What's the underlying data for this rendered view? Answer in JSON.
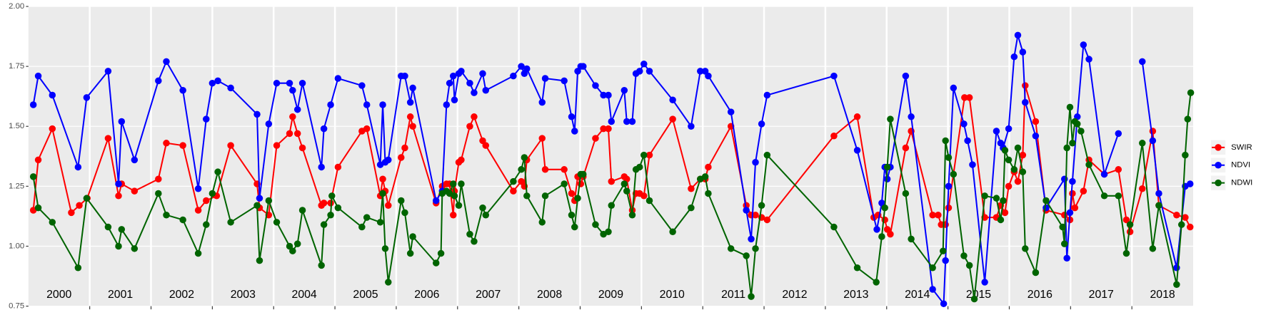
{
  "chart_data": {
    "type": "line",
    "xlim": [
      2000,
      2019
    ],
    "ylim": [
      0.75,
      2.0
    ],
    "xticks": [
      2001,
      2002,
      2003,
      2004,
      2005,
      2006,
      2007,
      2008,
      2009,
      2010,
      2011,
      2012,
      2013,
      2014,
      2015,
      2016,
      2017,
      2018
    ],
    "year_labels": [
      {
        "value": 2000.5,
        "label": "2000"
      },
      {
        "value": 2001.5,
        "label": "2001"
      },
      {
        "value": 2002.5,
        "label": "2002"
      },
      {
        "value": 2003.5,
        "label": "2003"
      },
      {
        "value": 2004.5,
        "label": "2004"
      },
      {
        "value": 2005.5,
        "label": "2005"
      },
      {
        "value": 2006.5,
        "label": "2006"
      },
      {
        "value": 2007.5,
        "label": "2007"
      },
      {
        "value": 2008.5,
        "label": "2008"
      },
      {
        "value": 2009.5,
        "label": "2009"
      },
      {
        "value": 2010.5,
        "label": "2010"
      },
      {
        "value": 2011.5,
        "label": "2011"
      },
      {
        "value": 2012.5,
        "label": "2012"
      },
      {
        "value": 2013.5,
        "label": "2013"
      },
      {
        "value": 2014.5,
        "label": "2014"
      },
      {
        "value": 2015.5,
        "label": "2015"
      },
      {
        "value": 2016.5,
        "label": "2016"
      },
      {
        "value": 2017.5,
        "label": "2017"
      },
      {
        "value": 2018.5,
        "label": "2018"
      }
    ],
    "yticks": [
      {
        "value": 0.75,
        "label": "0.75"
      },
      {
        "value": 1,
        "label": "1.00"
      },
      {
        "value": 1.25,
        "label": "1.25"
      },
      {
        "value": 1.5,
        "label": "1.50"
      },
      {
        "value": 1.75,
        "label": "1.75"
      },
      {
        "value": 2,
        "label": "2.00"
      }
    ],
    "grid": true,
    "legend": "right",
    "series": [
      {
        "name": "SWIR",
        "color": "#ff0000",
        "x": [
          2000.08,
          2000.16,
          2000.39,
          2000.7,
          2000.83,
          2000.96,
          2001.3,
          2001.47,
          2001.52,
          2001.73,
          2002.12,
          2002.25,
          2002.52,
          2002.77,
          2002.9,
          2003.07,
          2003.3,
          2003.73,
          2003.77,
          2003.92,
          2004.05,
          2004.26,
          2004.31,
          2004.39,
          2004.47,
          2004.78,
          2004.82,
          2004.93,
          2005.05,
          2005.44,
          2005.52,
          2005.74,
          2005.78,
          2005.82,
          2005.87,
          2006.08,
          2006.14,
          2006.23,
          2006.27,
          2006.65,
          2006.75,
          2006.82,
          2006.87,
          2006.93,
          2006.95,
          2007.02,
          2007.06,
          2007.2,
          2007.27,
          2007.41,
          2007.46,
          2007.91,
          2008.04,
          2008.09,
          2008.13,
          2008.38,
          2008.43,
          2008.74,
          2008.86,
          2008.91,
          2008.96,
          2009.01,
          2009.05,
          2009.25,
          2009.38,
          2009.46,
          2009.51,
          2009.72,
          2009.76,
          2009.85,
          2009.91,
          2009.97,
          2010.04,
          2010.13,
          2010.51,
          2010.81,
          2010.96,
          2011.04,
          2011.09,
          2011.46,
          2011.71,
          2011.79,
          2011.86,
          2011.96,
          2012.05,
          2013.14,
          2013.52,
          2013.79,
          2013.86,
          2013.97,
          2014.01,
          2014.06,
          2014.31,
          2014.4,
          2014.75,
          2014.84,
          2014.89,
          2014.96,
          2015.01,
          2015.27,
          2015.35,
          2015.6,
          2015.79,
          2015.86,
          2015.93,
          2015.99,
          2016.08,
          2016.14,
          2016.22,
          2016.26,
          2016.43,
          2016.6,
          2016.9,
          2016.99,
          2017.03,
          2017.07,
          2017.21,
          2017.3,
          2017.55,
          2017.78,
          2017.91,
          2017.97,
          2018.17,
          2018.34,
          2018.44,
          2018.73,
          2018.87,
          2018.95
        ],
        "values": [
          1.15,
          1.36,
          1.49,
          1.14,
          1.17,
          1.2,
          1.45,
          1.21,
          1.26,
          1.23,
          1.28,
          1.43,
          1.42,
          1.15,
          1.19,
          1.21,
          1.42,
          1.26,
          1.16,
          1.13,
          1.42,
          1.47,
          1.54,
          1.47,
          1.41,
          1.17,
          1.18,
          1.18,
          1.33,
          1.48,
          1.49,
          1.21,
          1.28,
          1.23,
          1.17,
          1.37,
          1.41,
          1.54,
          1.5,
          1.18,
          1.25,
          1.26,
          1.26,
          1.13,
          1.23,
          1.35,
          1.36,
          1.5,
          1.54,
          1.44,
          1.42,
          1.23,
          1.27,
          1.25,
          1.36,
          1.45,
          1.32,
          1.32,
          1.22,
          1.19,
          1.29,
          1.26,
          1.29,
          1.45,
          1.49,
          1.49,
          1.27,
          1.29,
          1.28,
          1.15,
          1.22,
          1.22,
          1.21,
          1.38,
          1.53,
          1.24,
          1.28,
          1.28,
          1.33,
          1.5,
          1.17,
          1.13,
          1.13,
          1.12,
          1.11,
          1.46,
          1.54,
          1.12,
          1.13,
          1.11,
          1.07,
          1.05,
          1.41,
          1.48,
          1.13,
          1.13,
          1.09,
          1.09,
          1.16,
          1.62,
          1.62,
          1.12,
          1.12,
          1.17,
          1.14,
          1.25,
          1.31,
          1.27,
          1.38,
          1.67,
          1.52,
          1.15,
          1.13,
          1.11,
          1.22,
          1.16,
          1.23,
          1.36,
          1.3,
          1.32,
          1.11,
          1.06,
          1.24,
          1.48,
          1.17,
          1.13,
          1.12,
          1.08
        ]
      },
      {
        "name": "NDVI",
        "color": "#0000ff",
        "x": [
          2000.08,
          2000.16,
          2000.39,
          2000.81,
          2000.95,
          2001.3,
          2001.47,
          2001.52,
          2001.73,
          2002.12,
          2002.25,
          2002.52,
          2002.77,
          2002.9,
          2003.0,
          2003.09,
          2003.3,
          2003.73,
          2003.77,
          2003.92,
          2004.05,
          2004.26,
          2004.31,
          2004.39,
          2004.47,
          2004.78,
          2004.82,
          2004.93,
          2005.05,
          2005.44,
          2005.52,
          2005.74,
          2005.78,
          2005.82,
          2005.87,
          2006.08,
          2006.14,
          2006.23,
          2006.27,
          2006.65,
          2006.75,
          2006.82,
          2006.87,
          2006.93,
          2006.95,
          2007.02,
          2007.06,
          2007.2,
          2007.27,
          2007.41,
          2007.46,
          2007.91,
          2008.04,
          2008.09,
          2008.13,
          2008.38,
          2008.43,
          2008.74,
          2008.86,
          2008.91,
          2008.96,
          2009.01,
          2009.05,
          2009.25,
          2009.38,
          2009.46,
          2009.51,
          2009.72,
          2009.76,
          2009.85,
          2009.91,
          2009.97,
          2010.04,
          2010.13,
          2010.51,
          2010.81,
          2010.96,
          2011.04,
          2011.09,
          2011.46,
          2011.71,
          2011.79,
          2011.86,
          2011.96,
          2012.05,
          2013.14,
          2013.52,
          2013.84,
          2013.92,
          2013.97,
          2014.01,
          2014.06,
          2014.31,
          2014.4,
          2014.75,
          2014.93,
          2014.96,
          2015.01,
          2015.09,
          2015.26,
          2015.32,
          2015.4,
          2015.6,
          2015.79,
          2015.86,
          2015.9,
          2015.99,
          2016.08,
          2016.14,
          2016.22,
          2016.26,
          2016.43,
          2016.6,
          2016.9,
          2016.94,
          2016.99,
          2017.03,
          2017.11,
          2017.21,
          2017.3,
          2017.55,
          2017.78,
          null,
          2018.17,
          2018.34,
          2018.44,
          2018.73,
          2018.87,
          2018.95
        ],
        "values": [
          1.59,
          1.71,
          1.63,
          1.33,
          1.62,
          1.73,
          1.26,
          1.52,
          1.36,
          1.69,
          1.77,
          1.65,
          1.24,
          1.53,
          1.68,
          1.69,
          1.66,
          1.55,
          1.2,
          1.51,
          1.68,
          1.68,
          1.65,
          1.57,
          1.68,
          1.33,
          1.49,
          1.59,
          1.7,
          1.67,
          1.59,
          1.34,
          1.59,
          1.35,
          1.36,
          1.71,
          1.71,
          1.6,
          1.66,
          1.19,
          1.23,
          1.59,
          1.68,
          1.71,
          1.61,
          1.72,
          1.73,
          1.68,
          1.64,
          1.72,
          1.65,
          1.71,
          1.75,
          1.72,
          1.74,
          1.6,
          1.7,
          1.69,
          1.54,
          1.48,
          1.73,
          1.75,
          1.75,
          1.67,
          1.63,
          1.63,
          1.52,
          1.65,
          1.52,
          1.52,
          1.72,
          1.73,
          1.76,
          1.73,
          1.61,
          1.5,
          1.73,
          1.73,
          1.71,
          1.56,
          1.15,
          1.03,
          1.35,
          1.51,
          1.63,
          1.71,
          1.4,
          1.07,
          1.18,
          1.33,
          1.28,
          1.33,
          1.71,
          1.54,
          0.82,
          0.76,
          0.94,
          1.25,
          1.66,
          1.51,
          1.44,
          1.34,
          0.85,
          1.48,
          1.43,
          1.41,
          1.49,
          1.79,
          1.88,
          1.81,
          1.6,
          1.46,
          1.16,
          1.28,
          0.95,
          1.14,
          1.27,
          1.54,
          1.84,
          1.78,
          1.3,
          1.47,
          null,
          1.77,
          1.44,
          1.22,
          0.91,
          1.25,
          1.26
        ]
      },
      {
        "name": "NDWI",
        "color": "#006400",
        "x": [
          2000.08,
          2000.16,
          2000.39,
          2000.81,
          2000.95,
          2001.3,
          2001.47,
          2001.52,
          2001.73,
          2002.12,
          2002.25,
          2002.52,
          2002.77,
          2002.9,
          2003.0,
          2003.09,
          2003.3,
          2003.73,
          2003.77,
          2003.92,
          2004.05,
          2004.26,
          2004.31,
          2004.39,
          2004.47,
          2004.78,
          2004.82,
          2004.93,
          2004.95,
          2005.05,
          2005.44,
          2005.52,
          2005.74,
          2005.78,
          2005.82,
          2005.87,
          2006.08,
          2006.14,
          2006.23,
          2006.27,
          2006.65,
          2006.73,
          2006.75,
          2006.82,
          2006.87,
          2006.93,
          2006.95,
          2007.02,
          2007.06,
          2007.2,
          2007.27,
          2007.41,
          2007.46,
          2007.91,
          2008.04,
          2008.09,
          2008.13,
          2008.38,
          2008.43,
          2008.74,
          2008.86,
          2008.91,
          2008.96,
          2009.01,
          2009.05,
          2009.25,
          2009.38,
          2009.46,
          2009.51,
          2009.72,
          2009.76,
          2009.85,
          2009.91,
          2009.97,
          2010.04,
          2010.13,
          2010.51,
          2010.81,
          2010.96,
          2011.04,
          2011.09,
          2011.46,
          2011.71,
          2011.79,
          2011.86,
          2011.96,
          2012.05,
          2013.14,
          2013.52,
          2013.83,
          2013.92,
          2013.97,
          2014.01,
          2014.06,
          2014.31,
          2014.4,
          2014.75,
          2014.92,
          2014.96,
          2015.01,
          2015.09,
          2015.26,
          2015.35,
          2015.43,
          2015.6,
          2015.79,
          2015.86,
          2015.9,
          2015.93,
          2015.99,
          2016.08,
          2016.14,
          2016.22,
          2016.26,
          2016.43,
          2016.6,
          2016.87,
          2016.9,
          2016.94,
          2016.99,
          2017.03,
          2017.07,
          2017.11,
          2017.17,
          2017.3,
          2017.55,
          2017.78,
          2017.91,
          2017.97,
          2018.17,
          2018.34,
          2018.44,
          2018.73,
          2018.81,
          2018.87,
          2018.91,
          2018.96
        ],
        "values": [
          1.29,
          1.16,
          1.1,
          0.91,
          1.2,
          1.08,
          1.0,
          1.07,
          0.99,
          1.22,
          1.13,
          1.11,
          0.97,
          1.09,
          1.22,
          1.31,
          1.1,
          1.17,
          0.94,
          1.19,
          1.1,
          1.0,
          0.98,
          1.01,
          1.15,
          0.92,
          1.09,
          1.13,
          1.21,
          1.16,
          1.08,
          1.12,
          1.1,
          1.22,
          0.99,
          0.85,
          1.19,
          1.14,
          0.97,
          1.04,
          0.93,
          0.97,
          1.22,
          1.23,
          1.22,
          1.26,
          1.21,
          1.17,
          1.26,
          1.05,
          1.02,
          1.16,
          1.13,
          1.27,
          1.32,
          1.37,
          1.21,
          1.1,
          1.21,
          1.26,
          1.13,
          1.08,
          1.2,
          1.3,
          1.3,
          1.09,
          1.05,
          1.06,
          1.17,
          1.26,
          1.23,
          1.13,
          1.32,
          1.33,
          1.38,
          1.19,
          1.06,
          1.16,
          1.28,
          1.29,
          1.22,
          0.99,
          0.96,
          0.79,
          0.99,
          1.17,
          1.38,
          1.08,
          0.91,
          0.85,
          1.04,
          1.16,
          1.33,
          1.53,
          1.22,
          1.03,
          0.91,
          0.98,
          1.44,
          1.37,
          1.3,
          0.96,
          0.92,
          0.78,
          1.21,
          1.2,
          1.11,
          1.19,
          1.4,
          1.36,
          1.32,
          1.41,
          1.31,
          0.99,
          0.89,
          1.19,
          1.08,
          1.01,
          1.41,
          1.58,
          1.43,
          1.52,
          1.51,
          1.48,
          1.34,
          1.21,
          1.21,
          0.97,
          1.09,
          1.43,
          0.99,
          1.17,
          0.84,
          1.09,
          1.38,
          1.53,
          1.64
        ]
      }
    ]
  }
}
